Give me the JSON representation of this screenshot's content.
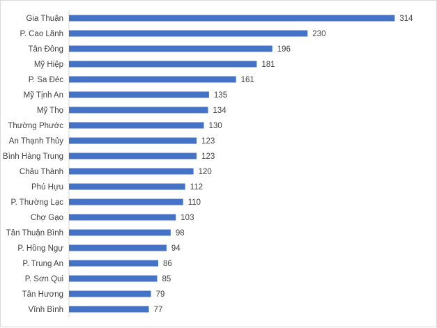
{
  "chart_data": {
    "type": "bar",
    "orientation": "horizontal",
    "title": "",
    "xlabel": "",
    "ylabel": "",
    "categories": [
      "Gia Thuận",
      "P. Cao Lãnh",
      "Tân Đông",
      "Mỹ Hiệp",
      "P. Sa Đéc",
      "Mỹ Tịnh An",
      "Mỹ Thọ",
      "Thường Phước",
      "An Thạnh Thủy",
      "Bình Hàng Trung",
      "Châu Thành",
      "Phú Hựu",
      "P. Thường Lạc",
      "Chợ Gạo",
      "Tân Thuận Bình",
      "P. Hồng Ngự",
      "P. Trung An",
      "P. Sơn Qui",
      "Tân Hương",
      "Vĩnh Bình"
    ],
    "values": [
      314,
      230,
      196,
      181,
      161,
      135,
      134,
      130,
      123,
      123,
      120,
      112,
      110,
      103,
      98,
      94,
      86,
      85,
      79,
      77
    ],
    "xlim": [
      0,
      340
    ],
    "grid": false,
    "data_labels": true,
    "bar_color": "#4472c4"
  }
}
